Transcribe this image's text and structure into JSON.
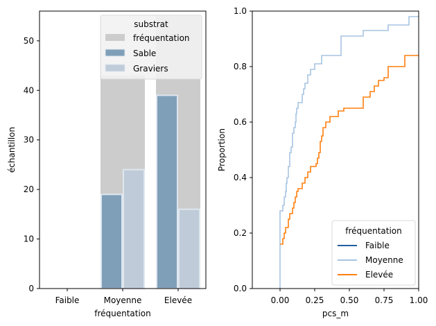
{
  "chart_data": [
    {
      "type": "bar",
      "xlabel": "fréquentation",
      "ylabel": "échantillon",
      "categories": [
        "Faible",
        "Moyenne",
        "Elevée"
      ],
      "ylim": [
        0,
        56
      ],
      "yticks": [
        0,
        10,
        20,
        30,
        40,
        50
      ],
      "total": {
        "name": "fréquentation",
        "values": [
          0,
          43,
          55
        ],
        "color": "#cccccc"
      },
      "series": [
        {
          "name": "Sable",
          "values": [
            0,
            19,
            39
          ],
          "color": "#7f9fb8"
        },
        {
          "name": "Graviers",
          "values": [
            0,
            24,
            16
          ],
          "color": "#bfcbd8"
        }
      ],
      "legend": {
        "title": "substrat",
        "position": "top-right"
      },
      "grid": false
    },
    {
      "type": "line",
      "subtype": "ecdf-step",
      "xlabel": "pcs_m",
      "ylabel": "Proportion",
      "xlim": [
        -0.2,
        1.0
      ],
      "ylim": [
        0,
        1.0
      ],
      "xticks": [
        "0.00",
        "0.25",
        "0.50",
        "0.75",
        "1.00"
      ],
      "xtick_values": [
        0,
        0.25,
        0.5,
        0.75,
        1.0
      ],
      "yticks": [
        "0.0",
        "0.2",
        "0.4",
        "0.6",
        "0.8",
        "1.0"
      ],
      "ytick_values": [
        0,
        0.2,
        0.4,
        0.6,
        0.8,
        1.0
      ],
      "legend": {
        "title": "fréquentation",
        "position": "lower-right"
      },
      "grid": false,
      "series": [
        {
          "name": "Faible",
          "color": "#1f5f9e",
          "points": []
        },
        {
          "name": "Moyenne",
          "color": "#a6c4e2",
          "points": [
            [
              0.0,
              0.0
            ],
            [
              0.0,
              0.28
            ],
            [
              0.02,
              0.3
            ],
            [
              0.03,
              0.33
            ],
            [
              0.04,
              0.35
            ],
            [
              0.045,
              0.38
            ],
            [
              0.05,
              0.4
            ],
            [
              0.06,
              0.44
            ],
            [
              0.07,
              0.49
            ],
            [
              0.08,
              0.51
            ],
            [
              0.09,
              0.56
            ],
            [
              0.1,
              0.58
            ],
            [
              0.11,
              0.6
            ],
            [
              0.115,
              0.63
            ],
            [
              0.12,
              0.65
            ],
            [
              0.13,
              0.67
            ],
            [
              0.16,
              0.7
            ],
            [
              0.17,
              0.72
            ],
            [
              0.18,
              0.74
            ],
            [
              0.2,
              0.77
            ],
            [
              0.22,
              0.79
            ],
            [
              0.25,
              0.81
            ],
            [
              0.28,
              0.81
            ],
            [
              0.3,
              0.84
            ],
            [
              0.3,
              0.84
            ],
            [
              0.44,
              0.84
            ],
            [
              0.44,
              0.91
            ],
            [
              0.6,
              0.91
            ],
            [
              0.6,
              0.93
            ],
            [
              0.78,
              0.93
            ],
            [
              0.78,
              0.95
            ],
            [
              0.93,
              0.95
            ],
            [
              0.93,
              0.98
            ],
            [
              1.0,
              0.98
            ]
          ]
        },
        {
          "name": "Elevée",
          "color": "#ff7f0e",
          "points": [
            [
              0.0,
              0.16
            ],
            [
              0.02,
              0.18
            ],
            [
              0.03,
              0.2
            ],
            [
              0.04,
              0.22
            ],
            [
              0.06,
              0.25
            ],
            [
              0.07,
              0.27
            ],
            [
              0.09,
              0.29
            ],
            [
              0.1,
              0.31
            ],
            [
              0.11,
              0.33
            ],
            [
              0.12,
              0.35
            ],
            [
              0.13,
              0.36
            ],
            [
              0.15,
              0.36
            ],
            [
              0.16,
              0.38
            ],
            [
              0.18,
              0.4
            ],
            [
              0.2,
              0.42
            ],
            [
              0.22,
              0.44
            ],
            [
              0.26,
              0.45
            ],
            [
              0.27,
              0.47
            ],
            [
              0.28,
              0.49
            ],
            [
              0.29,
              0.53
            ],
            [
              0.3,
              0.55
            ],
            [
              0.31,
              0.58
            ],
            [
              0.33,
              0.6
            ],
            [
              0.36,
              0.62
            ],
            [
              0.42,
              0.62
            ],
            [
              0.42,
              0.64
            ],
            [
              0.46,
              0.65
            ],
            [
              0.58,
              0.65
            ],
            [
              0.6,
              0.69
            ],
            [
              0.65,
              0.69
            ],
            [
              0.65,
              0.71
            ],
            [
              0.68,
              0.73
            ],
            [
              0.71,
              0.75
            ],
            [
              0.75,
              0.76
            ],
            [
              0.78,
              0.78
            ],
            [
              0.78,
              0.8
            ],
            [
              0.9,
              0.8
            ],
            [
              0.9,
              0.84
            ],
            [
              1.0,
              0.84
            ]
          ]
        }
      ]
    }
  ]
}
